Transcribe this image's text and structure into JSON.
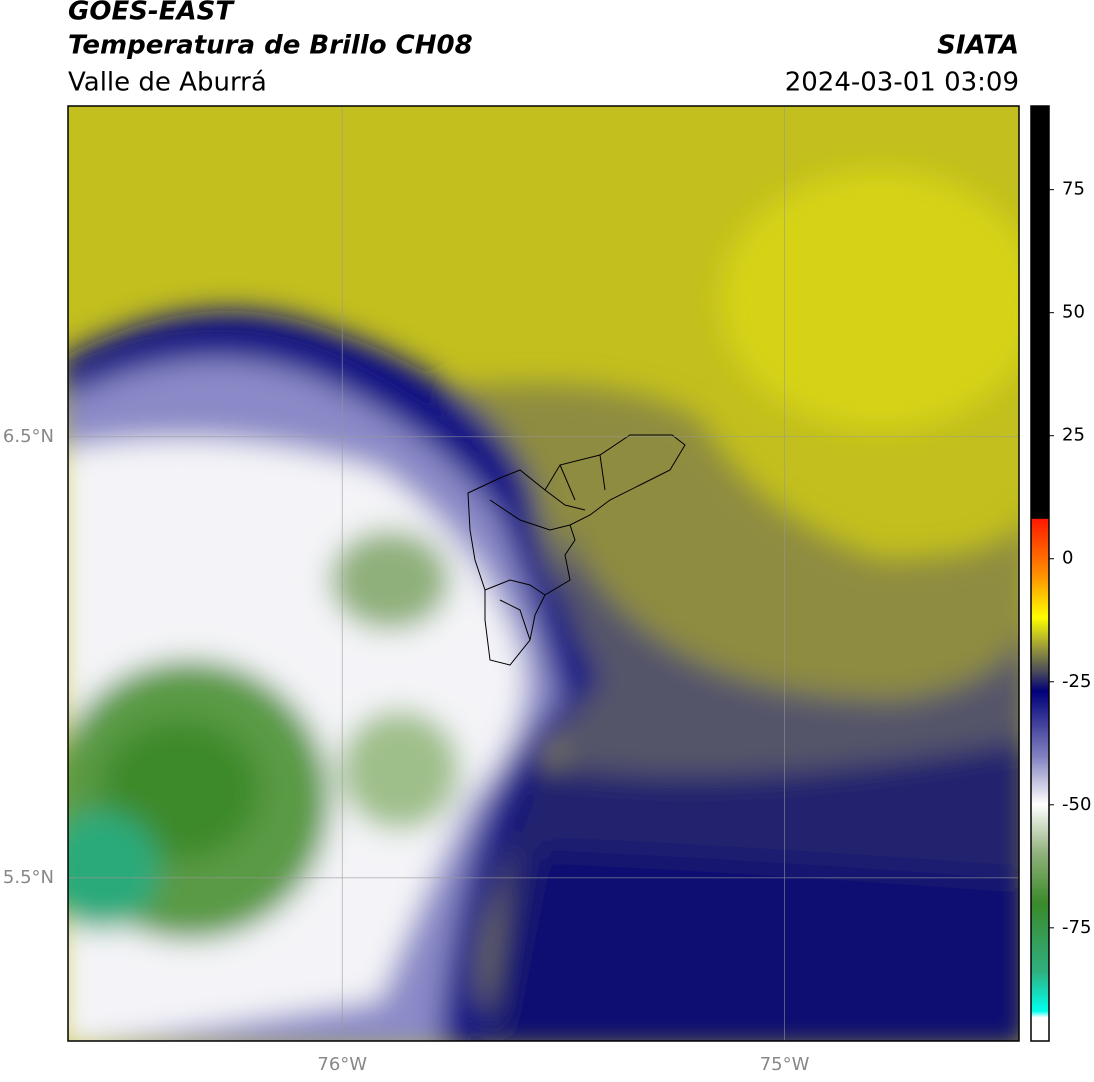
{
  "header": {
    "title": "GOES-EAST",
    "subtitle": "Temperatura de Brillo CH08",
    "region": "Valle de Aburrá",
    "source": "SIATA",
    "timestamp": "2024-03-01 03:09"
  },
  "map": {
    "xlim": [
      -76.62,
      -74.47
    ],
    "ylim": [
      5.13,
      7.25
    ],
    "xticks": [
      {
        "value": -76,
        "label": "76°W"
      },
      {
        "value": -75,
        "label": "75°W"
      }
    ],
    "yticks": [
      {
        "value": 6.5,
        "label": "6.5°N"
      },
      {
        "value": 5.5,
        "label": "5.5°N"
      }
    ],
    "grid": true
  },
  "colorbar": {
    "clim": [
      -98,
      92
    ],
    "ticks": [
      75,
      50,
      25,
      0,
      -25,
      -50,
      -75
    ]
  }
}
